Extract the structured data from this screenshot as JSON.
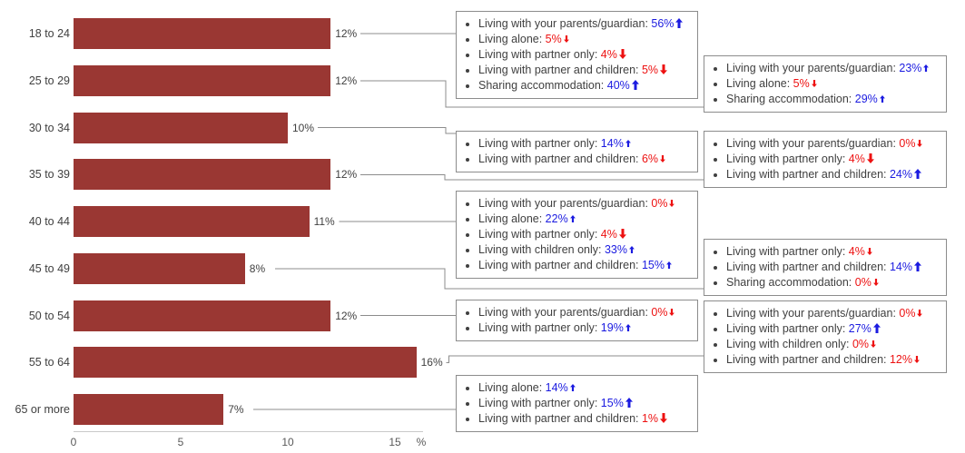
{
  "colors": {
    "bar": "#9a3733",
    "increase_blue": "#1b1be0",
    "decrease_red": "#ed1111",
    "text": "#404040",
    "axis_text": "#595959",
    "box_border": "#8c8c8c",
    "connector": "#8c8c8c",
    "axis_line": "#c9c9c9"
  },
  "chart_data": {
    "type": "bar",
    "orientation": "horizontal",
    "categories": [
      "18 to 24",
      "25 to 29",
      "30 to 34",
      "35 to 39",
      "40 to 44",
      "45 to 49",
      "50 to 54",
      "55 to 64",
      "65 or more"
    ],
    "values": [
      12,
      12,
      10,
      12,
      11,
      8,
      12,
      16,
      7
    ],
    "value_labels": [
      "12%",
      "12%",
      "10%",
      "12%",
      "11%",
      "8%",
      "12%",
      "16%",
      "7%"
    ],
    "x_ticks": [
      "0",
      "5",
      "10",
      "15"
    ],
    "x_tick_values": [
      0,
      5,
      10,
      15
    ],
    "x_axis_unit": "%",
    "xlim": [
      0,
      16.3
    ],
    "grid": false,
    "legend": "none",
    "annotations": [
      {
        "category": "18 to 24",
        "column": "middle",
        "items": [
          {
            "label": "Living with your parents/guardian",
            "value": "56%",
            "direction": "up",
            "arrow_size": "large"
          },
          {
            "label": "Living alone",
            "value": "5%",
            "direction": "down",
            "arrow_size": "small"
          },
          {
            "label": "Living with partner only",
            "value": "4%",
            "direction": "down",
            "arrow_size": "large"
          },
          {
            "label": "Living with partner and children",
            "value": "5%",
            "direction": "down",
            "arrow_size": "large"
          },
          {
            "label": "Sharing accommodation",
            "value": "40%",
            "direction": "up",
            "arrow_size": "large"
          }
        ]
      },
      {
        "category": "25 to 29",
        "column": "right",
        "items": [
          {
            "label": "Living with your parents/guardian",
            "value": "23%",
            "direction": "up",
            "arrow_size": "small"
          },
          {
            "label": "Living alone",
            "value": "5%",
            "direction": "down",
            "arrow_size": "small"
          },
          {
            "label": "Sharing accommodation",
            "value": "29%",
            "direction": "up",
            "arrow_size": "small"
          }
        ]
      },
      {
        "category": "30 to 34",
        "column": "middle",
        "items": [
          {
            "label": "Living with partner only",
            "value": "14%",
            "direction": "up",
            "arrow_size": "small"
          },
          {
            "label": "Living with partner and children",
            "value": "6%",
            "direction": "down",
            "arrow_size": "small"
          }
        ]
      },
      {
        "category": "35 to 39",
        "column": "right",
        "items": [
          {
            "label": "Living with your parents/guardian",
            "value": "0%",
            "direction": "down",
            "arrow_size": "small"
          },
          {
            "label": "Living with partner only",
            "value": "4%",
            "direction": "down",
            "arrow_size": "large"
          },
          {
            "label": "Living with partner and children",
            "value": "24%",
            "direction": "up",
            "arrow_size": "large"
          }
        ]
      },
      {
        "category": "40 to 44",
        "column": "middle",
        "items": [
          {
            "label": "Living with your parents/guardian",
            "value": "0%",
            "direction": "down",
            "arrow_size": "small"
          },
          {
            "label": "Living alone",
            "value": "22%",
            "direction": "up",
            "arrow_size": "small"
          },
          {
            "label": "Living with partner only",
            "value": "4%",
            "direction": "down",
            "arrow_size": "large"
          },
          {
            "label": "Living with children only",
            "value": "33%",
            "direction": "up",
            "arrow_size": "small"
          },
          {
            "label": "Living with partner and children",
            "value": "15%",
            "direction": "up",
            "arrow_size": "small"
          }
        ]
      },
      {
        "category": "45 to 49",
        "column": "right",
        "items": [
          {
            "label": "Living with partner only",
            "value": "4%",
            "direction": "down",
            "arrow_size": "small"
          },
          {
            "label": "Living with partner and children",
            "value": "14%",
            "direction": "up",
            "arrow_size": "large"
          },
          {
            "label": "Sharing accommodation",
            "value": "0%",
            "direction": "down",
            "arrow_size": "small"
          }
        ]
      },
      {
        "category": "50 to 54",
        "column": "middle",
        "items": [
          {
            "label": "Living with your parents/guardian",
            "value": "0%",
            "direction": "down",
            "arrow_size": "small"
          },
          {
            "label": "Living with partner only",
            "value": "19%",
            "direction": "up",
            "arrow_size": "small"
          }
        ]
      },
      {
        "category": "55 to 64",
        "column": "right",
        "items": [
          {
            "label": "Living with your parents/guardian",
            "value": "0%",
            "direction": "down",
            "arrow_size": "small"
          },
          {
            "label": "Living with partner only",
            "value": "27%",
            "direction": "up",
            "arrow_size": "large"
          },
          {
            "label": "Living with children only",
            "value": "0%",
            "direction": "down",
            "arrow_size": "small"
          },
          {
            "label": "Living with partner and children",
            "value": "12%",
            "direction": "down",
            "arrow_size": "small"
          }
        ]
      },
      {
        "category": "65 or more",
        "column": "middle",
        "items": [
          {
            "label": "Living alone",
            "value": "14%",
            "direction": "up",
            "arrow_size": "small"
          },
          {
            "label": "Living with partner only",
            "value": "15%",
            "direction": "up",
            "arrow_size": "large"
          },
          {
            "label": "Living with partner and children",
            "value": "1%",
            "direction": "down",
            "arrow_size": "large"
          }
        ]
      }
    ]
  }
}
